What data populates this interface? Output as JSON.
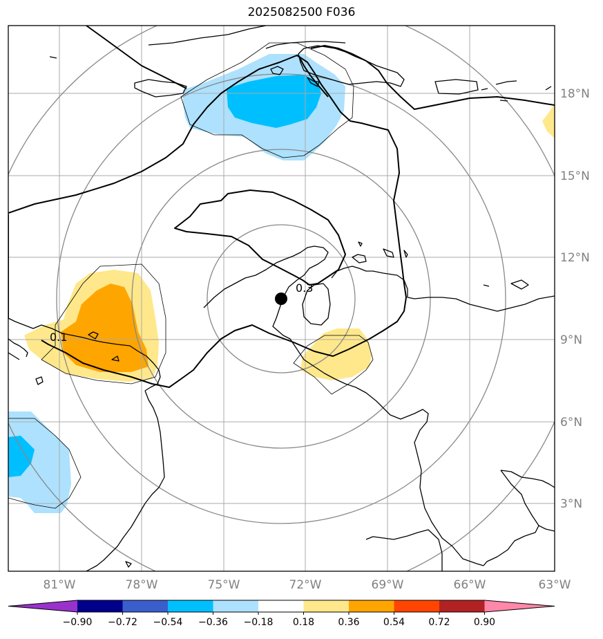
{
  "title": "2025082500 F036",
  "colors": {
    "lightblue": "#ade1fd",
    "deepskyblue": "#00bfff",
    "lightyellow": "#ffe88b",
    "orange": "#ffa500",
    "gridline": "#aaaaaa",
    "coast": "#000000",
    "ring": "#888888",
    "marker": "#000000"
  },
  "map": {
    "lon_labels": [
      "81°W",
      "78°W",
      "75°W",
      "72°W",
      "69°W",
      "66°W",
      "63°W"
    ],
    "lat_labels": [
      "18°N",
      "15°N",
      "12°N",
      "9°N",
      "6°N",
      "3°N"
    ],
    "contour_labels": [
      "0.3",
      "0.1"
    ],
    "center_marker": "storm-center"
  },
  "colorbar": {
    "ticks": [
      "−0.90",
      "−0.72",
      "−0.54",
      "−0.36",
      "−0.18",
      "0.18",
      "0.36",
      "0.54",
      "0.72",
      "0.90"
    ],
    "colors": [
      "#9932cc",
      "#00008b",
      "#3a5fcd",
      "#00bfff",
      "#ade1fd",
      "#ffffff",
      "#ffe88b",
      "#ffa500",
      "#ff4500",
      "#b22222",
      "#ff88aa"
    ]
  }
}
